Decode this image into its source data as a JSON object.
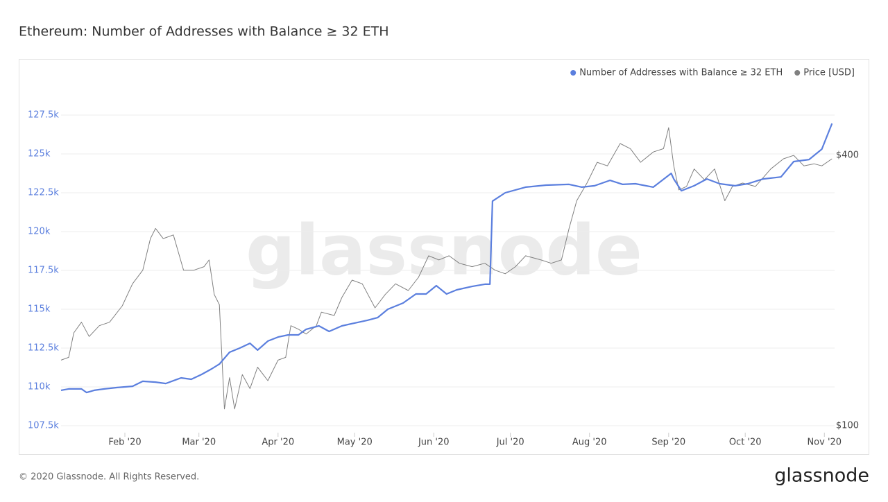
{
  "chart_data": {
    "type": "line",
    "title": "Ethereum: Number of Addresses with Balance ≥ 32 ETH",
    "watermark": "glassnode",
    "copyright": "© 2020 Glassnode. All Rights Reserved.",
    "logo": "glassnode",
    "legend": "top-right",
    "grid": true,
    "xlim": [
      7,
      310
    ],
    "xticks": [
      {
        "value": 32,
        "label": "Feb '20"
      },
      {
        "value": 61,
        "label": "Mar '20"
      },
      {
        "value": 92,
        "label": "Apr '20"
      },
      {
        "value": 122,
        "label": "May '20"
      },
      {
        "value": 153,
        "label": "Jun '20"
      },
      {
        "value": 183,
        "label": "Jul '20"
      },
      {
        "value": 214,
        "label": "Aug '20"
      },
      {
        "value": 245,
        "label": "Sep '20"
      },
      {
        "value": 275,
        "label": "Oct '20"
      },
      {
        "value": 306,
        "label": "Nov '20"
      }
    ],
    "ylim": [
      107500,
      130000
    ],
    "yticks": [
      {
        "value": 107500,
        "label": "107.5k"
      },
      {
        "value": 110000,
        "label": "110k"
      },
      {
        "value": 112500,
        "label": "112.5k"
      },
      {
        "value": 115000,
        "label": "115k"
      },
      {
        "value": 117500,
        "label": "117.5k"
      },
      {
        "value": 120000,
        "label": "120k"
      },
      {
        "value": 122500,
        "label": "122.5k"
      },
      {
        "value": 125000,
        "label": "125k"
      },
      {
        "value": 127500,
        "label": "127.5k"
      }
    ],
    "y2lim": [
      100,
      600
    ],
    "y2log": true,
    "y2ticks": [
      {
        "value": 100,
        "label": "$100"
      },
      {
        "value": 400,
        "label": "$400"
      }
    ],
    "series": [
      {
        "name": "Number of Addresses with Balance ≥ 32 ETH",
        "color": "#5b7fde",
        "x": [
          7,
          10,
          15,
          17,
          20,
          24,
          29,
          35,
          39,
          44,
          48,
          54,
          58,
          62,
          66,
          69,
          73,
          77,
          81,
          84,
          88,
          92,
          96,
          100,
          103,
          108,
          112,
          117,
          122,
          127,
          131,
          135,
          141,
          146,
          150,
          154,
          158,
          162,
          168,
          173,
          175,
          176,
          181,
          189,
          197,
          206,
          211,
          216,
          222,
          227,
          232,
          239,
          246,
          247,
          250,
          255,
          260,
          265,
          271,
          276,
          282,
          289,
          294,
          300,
          305,
          309
        ],
        "values": [
          109780,
          109870,
          109870,
          109640,
          109780,
          109870,
          109960,
          110040,
          110360,
          110310,
          110220,
          110580,
          110490,
          110800,
          111160,
          111470,
          112230,
          112500,
          112810,
          112370,
          112950,
          113210,
          113350,
          113350,
          113710,
          113930,
          113570,
          113930,
          114110,
          114290,
          114460,
          115000,
          115400,
          115980,
          115980,
          116520,
          115980,
          116250,
          116470,
          116610,
          116610,
          121960,
          122500,
          122860,
          122990,
          123040,
          122860,
          122950,
          123300,
          123040,
          123080,
          122860,
          123750,
          123390,
          122630,
          122950,
          123390,
          123080,
          122950,
          123080,
          123390,
          123520,
          124510,
          124640,
          125310,
          126960
        ]
      },
      {
        "name": "Price [USD]",
        "color": "#808080",
        "axis": "y2",
        "x": [
          7,
          10,
          12,
          15,
          18,
          22,
          26,
          31,
          35,
          39,
          42,
          44,
          47,
          51,
          55,
          59,
          63,
          65,
          67,
          69,
          71,
          73,
          75,
          78,
          81,
          84,
          88,
          92,
          95,
          97,
          100,
          103,
          107,
          109,
          114,
          117,
          121,
          125,
          130,
          134,
          138,
          143,
          147,
          151,
          155,
          159,
          163,
          168,
          173,
          177,
          181,
          185,
          189,
          195,
          199,
          203,
          206,
          209,
          213,
          217,
          221,
          226,
          230,
          234,
          239,
          243,
          245,
          247,
          249,
          252,
          255,
          259,
          263,
          267,
          270,
          274,
          279,
          285,
          290,
          294,
          298,
          302,
          305,
          309
        ],
        "values": [
          140,
          142,
          161,
          170,
          158,
          167,
          170,
          185,
          207,
          222,
          261,
          275,
          261,
          266,
          222,
          222,
          226,
          234,
          196,
          186,
          109,
          128,
          109,
          130,
          121,
          135,
          126,
          140,
          142,
          167,
          164,
          160,
          167,
          179,
          176,
          193,
          211,
          207,
          183,
          196,
          207,
          200,
          214,
          239,
          234,
          239,
          230,
          226,
          230,
          222,
          218,
          226,
          239,
          234,
          230,
          234,
          275,
          317,
          347,
          386,
          379,
          425,
          414,
          386,
          407,
          414,
          461,
          379,
          335,
          341,
          373,
          353,
          373,
          317,
          341,
          347,
          341,
          373,
          393,
          400,
          379,
          383,
          379,
          393
        ]
      }
    ]
  }
}
